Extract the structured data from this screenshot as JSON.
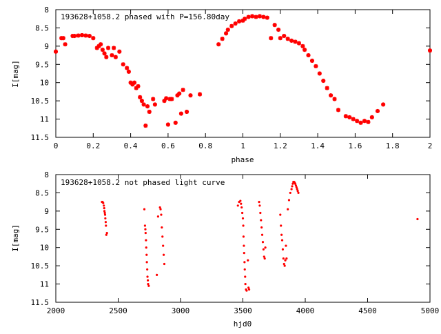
{
  "chart_data": [
    {
      "type": "scatter",
      "title": "193628+1058.2 phased with P=156.80day",
      "xlabel": "phase",
      "ylabel": "I[mag]",
      "xlim": [
        0,
        2
      ],
      "ylim": [
        11.5,
        8
      ],
      "y_inverted": true,
      "x_ticks": [
        "0",
        "0.2",
        "0.4",
        "0.6",
        "0.8",
        "1",
        "1.2",
        "1.4",
        "1.6",
        "1.8",
        "2"
      ],
      "y_ticks": [
        "8",
        "8.5",
        "9",
        "9.5",
        "10",
        "10.5",
        "11",
        "11.5"
      ],
      "grid": false,
      "marker": "star",
      "color": "#ff0000",
      "series": [
        {
          "x": [
            0.0,
            0.03,
            0.05,
            0.04,
            0.09,
            0.1,
            0.12,
            0.14,
            0.16,
            0.18,
            0.2,
            0.22,
            0.23,
            0.24,
            0.25,
            0.26,
            0.27,
            0.28,
            0.3,
            0.31,
            0.32,
            0.34,
            0.36,
            0.38,
            0.39,
            0.4,
            0.41,
            0.42,
            0.43,
            0.44,
            0.45,
            0.46,
            0.47,
            0.48,
            0.49,
            0.5,
            0.52,
            0.53,
            0.58,
            0.59,
            0.6,
            0.61,
            0.62,
            0.64,
            0.65,
            0.66,
            0.67,
            0.68,
            0.7,
            0.72,
            0.77,
            0.87,
            0.89,
            0.91,
            0.92,
            0.94,
            0.96,
            0.98,
            1.0,
            1.01,
            1.03,
            1.05,
            1.07,
            1.09,
            1.11,
            1.13,
            1.15,
            1.17,
            1.19,
            1.2,
            1.22,
            1.24,
            1.26,
            1.28,
            1.3,
            1.32,
            1.33,
            1.35,
            1.37,
            1.39,
            1.41,
            1.43,
            1.45,
            1.47,
            1.49,
            1.51,
            1.55,
            1.57,
            1.59,
            1.61,
            1.63,
            1.65,
            1.67,
            1.69,
            1.72,
            1.75,
            2.0
          ],
          "y": [
            9.15,
            8.78,
            8.95,
            8.78,
            8.72,
            8.72,
            8.71,
            8.7,
            8.71,
            8.72,
            8.78,
            9.05,
            9.0,
            8.95,
            9.1,
            9.2,
            9.3,
            9.05,
            9.25,
            9.05,
            9.3,
            9.15,
            9.5,
            9.6,
            9.7,
            10.0,
            10.05,
            10.0,
            10.15,
            10.1,
            10.4,
            10.5,
            10.6,
            11.18,
            10.65,
            10.8,
            10.45,
            10.6,
            10.5,
            10.43,
            11.15,
            10.45,
            10.45,
            11.1,
            10.35,
            10.3,
            10.85,
            10.2,
            10.8,
            10.35,
            10.32,
            8.95,
            8.8,
            8.65,
            8.55,
            8.45,
            8.38,
            8.32,
            8.3,
            8.25,
            8.2,
            8.18,
            8.2,
            8.18,
            8.2,
            8.22,
            8.78,
            8.42,
            8.55,
            8.78,
            8.72,
            8.8,
            8.85,
            8.88,
            8.92,
            9.0,
            9.1,
            9.25,
            9.4,
            9.55,
            9.75,
            9.95,
            10.15,
            10.35,
            10.45,
            10.75,
            10.92,
            10.95,
            11.0,
            11.05,
            11.1,
            11.05,
            11.08,
            10.95,
            10.78,
            10.6,
            9.12
          ]
        }
      ]
    },
    {
      "type": "scatter",
      "title": "193628+1058.2 not phased light curve",
      "xlabel": "hjd0",
      "ylabel": "I[mag]",
      "xlim": [
        2000,
        5000
      ],
      "ylim": [
        11.5,
        8
      ],
      "y_inverted": true,
      "x_ticks": [
        "2000",
        "2500",
        "3000",
        "3500",
        "4000",
        "4500",
        "5000"
      ],
      "y_ticks": [
        "8",
        "8.5",
        "9",
        "9.5",
        "10",
        "10.5",
        "11",
        "11.5"
      ],
      "grid": false,
      "marker": "dot",
      "color": "#ff0000",
      "series": [
        {
          "x": [
            2370,
            2375,
            2380,
            2385,
            2388,
            2390,
            2393,
            2395,
            2397,
            2400,
            2402,
            2405,
            2410,
            2710,
            2715,
            2718,
            2720,
            2723,
            2725,
            2728,
            2730,
            2733,
            2735,
            2738,
            2740,
            2745,
            2810,
            2820,
            2835,
            2840,
            2845,
            2850,
            2855,
            2860,
            2865,
            2870,
            3460,
            3470,
            3480,
            3485,
            3490,
            3495,
            3500,
            3503,
            3505,
            3508,
            3510,
            3513,
            3515,
            3518,
            3520,
            3525,
            3530,
            3540,
            3545,
            3550,
            3630,
            3635,
            3640,
            3645,
            3650,
            3655,
            3660,
            3665,
            3670,
            3675,
            3680,
            3800,
            3805,
            3810,
            3815,
            3820,
            3825,
            3830,
            3835,
            3840,
            3845,
            3850,
            3860,
            3870,
            3880,
            3890,
            3895,
            3900,
            3905,
            3910,
            3915,
            3920,
            3925,
            3930,
            3935,
            3940,
            3945,
            4900
          ],
          "y": [
            8.75,
            8.75,
            8.78,
            8.85,
            8.92,
            9.0,
            9.05,
            9.1,
            9.2,
            9.3,
            9.4,
            9.65,
            9.6,
            8.95,
            9.4,
            9.5,
            9.6,
            9.8,
            10.0,
            10.2,
            10.4,
            10.6,
            10.8,
            10.9,
            11.0,
            11.05,
            10.75,
            9.15,
            8.9,
            8.95,
            9.1,
            9.45,
            9.7,
            9.95,
            10.2,
            10.45,
            8.85,
            8.75,
            8.72,
            8.8,
            8.9,
            9.05,
            9.2,
            9.4,
            9.7,
            9.95,
            10.15,
            10.4,
            10.6,
            10.8,
            11.0,
            11.15,
            11.18,
            10.35,
            11.1,
            11.15,
            8.75,
            8.85,
            9.05,
            9.25,
            9.45,
            9.65,
            9.85,
            10.05,
            10.25,
            10.3,
            10.0,
            9.1,
            9.4,
            9.65,
            9.8,
            10.05,
            10.3,
            10.45,
            10.5,
            10.35,
            9.95,
            10.3,
            8.95,
            8.7,
            8.5,
            8.4,
            8.32,
            8.25,
            8.2,
            8.2,
            8.22,
            8.25,
            8.3,
            8.35,
            8.4,
            8.45,
            8.5,
            9.22
          ]
        }
      ]
    }
  ]
}
